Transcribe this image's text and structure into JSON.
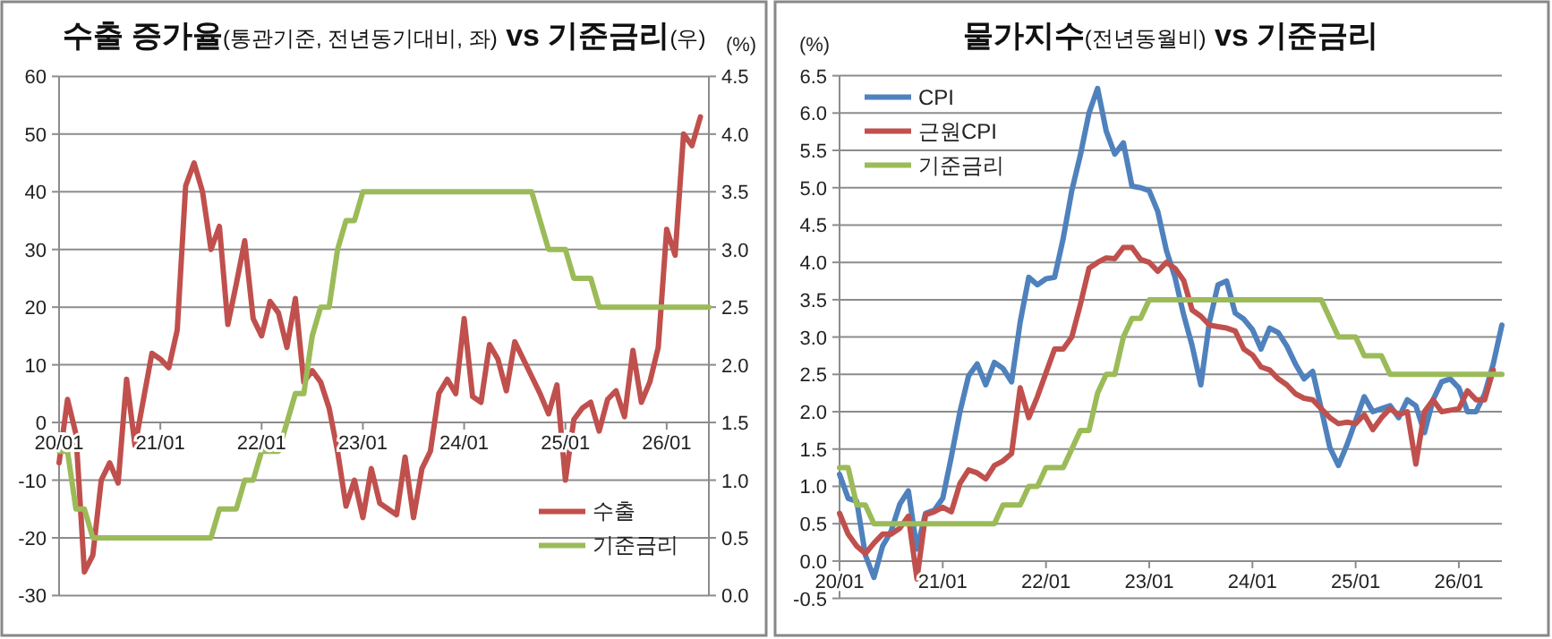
{
  "chart_data": [
    {
      "type": "line",
      "title": "수출 증가율(통관기준, 전년동기대비, 좌) vs 기준금리(우)",
      "y2label": "(%)",
      "categories": [
        "20/01",
        null,
        null,
        null,
        null,
        null,
        null,
        null,
        null,
        null,
        null,
        null,
        "21/01",
        null,
        null,
        null,
        null,
        null,
        null,
        null,
        null,
        null,
        null,
        null,
        "22/01",
        null,
        null,
        null,
        null,
        null,
        null,
        null,
        null,
        null,
        null,
        null,
        "23/01",
        null,
        null,
        null,
        null,
        null,
        null,
        null,
        null,
        null,
        null,
        null,
        "24/01",
        null,
        null,
        null,
        null,
        null,
        null,
        null,
        null,
        null,
        null,
        null,
        "25/01",
        null,
        null,
        null,
        null,
        null,
        null,
        null,
        null,
        null,
        null,
        null,
        "26/01",
        null,
        null,
        null,
        null,
        null
      ],
      "series": [
        {
          "name": "수출",
          "color": "#c0504d",
          "values": [
            -7,
            4,
            -2,
            -25.9,
            -23,
            -10,
            -7,
            -10.5,
            7.5,
            -4,
            4,
            12,
            11,
            9.5,
            16,
            41,
            45,
            40,
            30,
            34,
            17,
            24,
            31.5,
            18,
            15,
            21,
            19,
            13,
            21.5,
            7,
            9,
            7,
            2.5,
            -5,
            -14.5,
            -10,
            -16.5,
            -8,
            -14,
            -15,
            -16,
            -6,
            -16.5,
            -8,
            -5,
            5,
            7.5,
            5,
            18,
            4.5,
            3.5,
            13.5,
            11,
            5.5,
            14,
            11,
            8,
            5,
            1.5,
            6.5,
            -10,
            0.5,
            2.5,
            3.5,
            -1.5,
            4,
            5.5,
            1,
            12.5,
            3.5,
            7,
            13,
            33.5,
            29,
            50,
            48,
            53,
            null
          ]
        },
        {
          "name": "기준금리",
          "color": "#9bbb59",
          "axis": "y2",
          "values": [
            1.25,
            1.25,
            0.75,
            0.75,
            0.5,
            0.5,
            0.5,
            0.5,
            0.5,
            0.5,
            0.5,
            0.5,
            0.5,
            0.5,
            0.5,
            0.5,
            0.5,
            0.5,
            0.5,
            0.75,
            0.75,
            0.75,
            1,
            1,
            1.25,
            1.25,
            1.25,
            1.5,
            1.75,
            1.75,
            2.25,
            2.5,
            2.5,
            3,
            3.25,
            3.25,
            3.5,
            3.5,
            3.5,
            3.5,
            3.5,
            3.5,
            3.5,
            3.5,
            3.5,
            3.5,
            3.5,
            3.5,
            3.5,
            3.5,
            3.5,
            3.5,
            3.5,
            3.5,
            3.5,
            3.5,
            3.5,
            3.25,
            3,
            3,
            3,
            2.75,
            2.75,
            2.75,
            2.5,
            2.5,
            2.5,
            2.5,
            2.5,
            2.5,
            2.5,
            2.5,
            2.5,
            2.5,
            2.5,
            2.5,
            2.5,
            2.5
          ]
        }
      ],
      "ylim": [
        -30,
        60
      ],
      "yticks": [
        -30,
        -20,
        -10,
        0,
        10,
        20,
        30,
        40,
        50,
        60
      ],
      "y2lim": [
        0,
        4.5
      ],
      "y2ticks": [
        {
          "value": 0,
          "label": "0.0"
        },
        0.5,
        {
          "value": 1,
          "label": "1.0"
        },
        1.5,
        {
          "value": 2,
          "label": "2.0"
        },
        2.5,
        {
          "value": 3,
          "label": "3.0"
        },
        3.5,
        {
          "value": 4,
          "label": "4.0"
        },
        4.5
      ],
      "grid": "y",
      "legend": "bottom right",
      "line_style": "solid"
    },
    {
      "type": "line",
      "title": "물가지수(전년동월비) vs 기준금리",
      "ylabel": "(%)",
      "categories": [
        "20/01",
        null,
        null,
        null,
        null,
        null,
        null,
        null,
        null,
        null,
        null,
        null,
        "21/01",
        null,
        null,
        null,
        null,
        null,
        null,
        null,
        null,
        null,
        null,
        null,
        "22/01",
        null,
        null,
        null,
        null,
        null,
        null,
        null,
        null,
        null,
        null,
        null,
        "23/01",
        null,
        null,
        null,
        null,
        null,
        null,
        null,
        null,
        null,
        null,
        null,
        "24/01",
        null,
        null,
        null,
        null,
        null,
        null,
        null,
        null,
        null,
        null,
        null,
        "25/01",
        null,
        null,
        null,
        null,
        null,
        null,
        null,
        null,
        null,
        null,
        null,
        "26/01",
        null,
        null,
        null,
        null,
        null
      ],
      "series": [
        {
          "name": "CPI",
          "color": "#4f81bd",
          "values": [
            1.16,
            0.84,
            0.8,
            0.08,
            -0.22,
            0.2,
            0.4,
            0.76,
            0.94,
            0.16,
            0.64,
            0.68,
            0.84,
            1.4,
            2.0,
            2.48,
            2.64,
            2.36,
            2.66,
            2.58,
            2.4,
            3.2,
            3.8,
            3.7,
            3.78,
            3.8,
            4.32,
            4.96,
            5.44,
            6.0,
            6.33,
            5.76,
            5.45,
            5.6,
            5.02,
            5.0,
            4.96,
            4.68,
            4.16,
            3.8,
            3.3,
            2.88,
            2.36,
            3.2,
            3.7,
            3.75,
            3.32,
            3.24,
            3.1,
            2.84,
            3.12,
            3.06,
            2.88,
            2.64,
            2.44,
            2.54,
            2.04,
            1.52,
            1.28,
            1.56,
            1.88,
            2.2,
            2.0,
            2.04,
            2.08,
            1.92,
            2.16,
            2.08,
            1.72,
            2.16,
            2.4,
            2.44,
            2.32,
            2.0,
            2.0,
            2.24,
            2.64,
            3.16
          ]
        },
        {
          "name": "근원CPI",
          "color": "#c0504d",
          "values": [
            0.64,
            0.36,
            0.2,
            0.1,
            0.24,
            0.36,
            0.36,
            0.44,
            0.6,
            -0.24,
            0.62,
            0.66,
            0.72,
            0.66,
            1.04,
            1.22,
            1.18,
            1.1,
            1.28,
            1.34,
            1.44,
            2.32,
            1.92,
            2.2,
            2.52,
            2.84,
            2.84,
            3.0,
            3.44,
            3.92,
            4.0,
            4.06,
            4.05,
            4.2,
            4.2,
            4.04,
            4.0,
            3.88,
            4.0,
            3.92,
            3.76,
            3.36,
            3.28,
            3.16,
            3.14,
            3.12,
            3.08,
            2.84,
            2.76,
            2.6,
            2.56,
            2.44,
            2.36,
            2.24,
            2.18,
            2.16,
            2.04,
            1.92,
            1.84,
            1.86,
            1.84,
            1.96,
            1.76,
            1.92,
            2.04,
            1.96,
            2.0,
            1.3,
            2.0,
            2.16,
            2.0,
            2.02,
            2.04,
            2.28,
            2.16,
            2.16,
            2.56,
            null
          ]
        },
        {
          "name": "기준금리",
          "color": "#9bbb59",
          "values": [
            1.25,
            1.25,
            0.75,
            0.75,
            0.5,
            0.5,
            0.5,
            0.5,
            0.5,
            0.5,
            0.5,
            0.5,
            0.5,
            0.5,
            0.5,
            0.5,
            0.5,
            0.5,
            0.5,
            0.75,
            0.75,
            0.75,
            1,
            1,
            1.25,
            1.25,
            1.25,
            1.5,
            1.75,
            1.75,
            2.25,
            2.5,
            2.5,
            3,
            3.25,
            3.25,
            3.5,
            3.5,
            3.5,
            3.5,
            3.5,
            3.5,
            3.5,
            3.5,
            3.5,
            3.5,
            3.5,
            3.5,
            3.5,
            3.5,
            3.5,
            3.5,
            3.5,
            3.5,
            3.5,
            3.5,
            3.5,
            3.25,
            3,
            3,
            3,
            2.75,
            2.75,
            2.75,
            2.5,
            2.5,
            2.5,
            2.5,
            2.5,
            2.5,
            2.5,
            2.5,
            2.5,
            2.5,
            2.5,
            2.5,
            2.5,
            2.5
          ]
        }
      ],
      "ylim": [
        -0.5,
        6.5
      ],
      "yticks": [
        -0.5,
        {
          "value": 0,
          "label": "0.0"
        },
        0.5,
        {
          "value": 1,
          "label": "1.0"
        },
        1.5,
        {
          "value": 2,
          "label": "2.0"
        },
        2.5,
        {
          "value": 3,
          "label": "3.0"
        },
        3.5,
        {
          "value": 4,
          "label": "4.0"
        },
        4.5,
        {
          "value": 5,
          "label": "5.0"
        },
        5.5,
        {
          "value": 6,
          "label": "6.0"
        },
        6.5
      ],
      "grid": "y",
      "legend": "top left",
      "line_style": "solid"
    }
  ]
}
